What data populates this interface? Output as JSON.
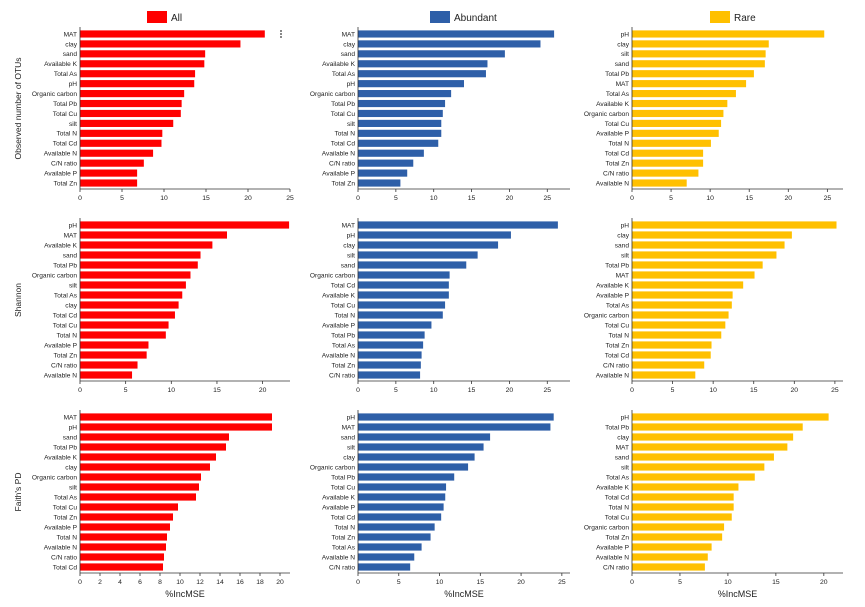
{
  "legend": [
    {
      "label": "All",
      "color": "#ff0000"
    },
    {
      "label": "Abundant",
      "color": "#2e5fa8"
    },
    {
      "label": "Rare",
      "color": "#ffc000"
    }
  ],
  "row_labels": [
    "Observed number of OTUs",
    "Shannon",
    "Faith's PD"
  ],
  "x_axis_label": "%IncMSE",
  "chart_data": [
    {
      "type": "bar",
      "orientation": "horizontal",
      "row": "Observed number of OTUs",
      "group": "All",
      "color": "#ff0000",
      "categories": [
        "MAT",
        "clay",
        "sand",
        "Available  K",
        "Total As",
        "pH",
        "Organic carbon",
        "Total Pb",
        "Total Cu",
        "silt",
        "Total N",
        "Total Cd",
        "Available N",
        "C/N ratio",
        "Available  P",
        "Total Zn"
      ],
      "values": [
        22.0,
        19.1,
        14.9,
        14.8,
        13.7,
        13.6,
        12.4,
        12.1,
        12.0,
        11.1,
        9.8,
        9.7,
        8.7,
        7.6,
        6.8,
        6.8
      ],
      "xlim": [
        0,
        25
      ],
      "ticks": [
        0,
        5,
        10,
        15,
        20,
        25
      ],
      "xlabel": ""
    },
    {
      "type": "bar",
      "orientation": "horizontal",
      "row": "Observed number of OTUs",
      "group": "Abundant",
      "color": "#2e5fa8",
      "categories": [
        "MAT",
        "clay",
        "sand",
        "Available  K",
        "Total As",
        "pH",
        "Organic carbon",
        "Total Pb",
        "Total Cu",
        "silt",
        "Total N",
        "Total Cd",
        "Available N",
        "C/N ratio",
        "Available  P",
        "Total Zn"
      ],
      "values": [
        25.9,
        24.1,
        19.4,
        17.1,
        16.9,
        14.0,
        12.3,
        11.5,
        11.2,
        11.0,
        11.0,
        10.6,
        8.7,
        7.3,
        6.5,
        5.6
      ],
      "xlim": [
        0,
        28
      ],
      "ticks": [
        0,
        5,
        10,
        15,
        20,
        25
      ],
      "xlabel": ""
    },
    {
      "type": "bar",
      "orientation": "horizontal",
      "row": "Observed number of OTUs",
      "group": "Rare",
      "color": "#ffc000",
      "categories": [
        "pH",
        "clay",
        "silt",
        "sand",
        "Total Pb",
        "MAT",
        "Total As",
        "Available  K",
        "Organic carbon",
        "Total Cu",
        "Available  P",
        "Total N",
        "Total Cd",
        "Total Zn",
        "C/N ratio",
        "Available N"
      ],
      "values": [
        24.6,
        17.5,
        17.1,
        17.0,
        15.6,
        14.6,
        13.3,
        12.2,
        11.7,
        11.4,
        11.1,
        10.1,
        9.1,
        9.1,
        8.5,
        7.0
      ],
      "xlim": [
        0,
        27
      ],
      "ticks": [
        0,
        5,
        10,
        15,
        20,
        25
      ],
      "xlabel": ""
    },
    {
      "type": "bar",
      "orientation": "horizontal",
      "row": "Shannon",
      "group": "All",
      "color": "#ff0000",
      "categories": [
        "pH",
        "MAT",
        "Available  K",
        "sand",
        "Total Pb",
        "Organic carbon",
        "silt",
        "Total As",
        "clay",
        "Total Cd",
        "Total Cu",
        "Total N",
        "Available  P",
        "Total Zn",
        "C/N ratio",
        "Available N"
      ],
      "values": [
        22.9,
        16.1,
        14.5,
        13.2,
        12.9,
        12.1,
        11.6,
        11.2,
        10.8,
        10.4,
        9.7,
        9.4,
        7.5,
        7.3,
        6.3,
        5.7
      ],
      "xlim": [
        0,
        23
      ],
      "ticks": [
        0,
        5,
        10,
        15,
        20
      ],
      "xlabel": ""
    },
    {
      "type": "bar",
      "orientation": "horizontal",
      "row": "Shannon",
      "group": "Abundant",
      "color": "#2e5fa8",
      "categories": [
        "MAT",
        "pH",
        "clay",
        "silt",
        "sand",
        "Organic carbon",
        "Total Cd",
        "Available  K",
        "Total Cu",
        "Total N",
        "Available  P",
        "Total Pb",
        "Total As",
        "Available N",
        "Total Zn",
        "C/N ratio"
      ],
      "values": [
        26.4,
        20.2,
        18.5,
        15.8,
        14.3,
        12.1,
        12.0,
        12.0,
        11.5,
        11.2,
        9.7,
        8.8,
        8.6,
        8.4,
        8.3,
        8.2
      ],
      "xlim": [
        0,
        28
      ],
      "ticks": [
        0,
        5,
        10,
        15,
        20,
        25
      ],
      "xlabel": ""
    },
    {
      "type": "bar",
      "orientation": "horizontal",
      "row": "Shannon",
      "group": "Rare",
      "color": "#ffc000",
      "categories": [
        "pH",
        "clay",
        "sand",
        "silt",
        "Total Pb",
        "MAT",
        "Available  K",
        "Available  P",
        "Total As",
        "Organic carbon",
        "Total Cu",
        "Total N",
        "Total Zn",
        "Total Cd",
        "C/N ratio",
        "Available N"
      ],
      "values": [
        25.2,
        19.7,
        18.8,
        17.8,
        16.1,
        15.1,
        13.7,
        12.4,
        12.3,
        11.9,
        11.5,
        11.0,
        9.8,
        9.7,
        8.9,
        7.8
      ],
      "xlim": [
        0,
        26
      ],
      "ticks": [
        0,
        5,
        10,
        15,
        20,
        25
      ],
      "xlabel": ""
    },
    {
      "type": "bar",
      "orientation": "horizontal",
      "row": "Faith's PD",
      "group": "All",
      "color": "#ff0000",
      "categories": [
        "MAT",
        "pH",
        "sand",
        "Total Pb",
        "Available  K",
        "clay",
        "Organic carbon",
        "silt",
        "Total As",
        "Total Cu",
        "Total Zn",
        "Available  P",
        "Total N",
        "Available N",
        "C/N ratio",
        "Total Cd"
      ],
      "values": [
        19.2,
        19.2,
        14.9,
        14.6,
        13.6,
        13.0,
        12.1,
        11.9,
        11.6,
        9.8,
        9.3,
        9.0,
        8.7,
        8.6,
        8.4,
        8.3
      ],
      "xlim": [
        0,
        21
      ],
      "ticks": [
        0,
        2,
        4,
        6,
        8,
        10,
        12,
        14,
        16,
        18,
        20
      ],
      "xlabel": "%IncMSE"
    },
    {
      "type": "bar",
      "orientation": "horizontal",
      "row": "Faith's PD",
      "group": "Abundant",
      "color": "#2e5fa8",
      "categories": [
        "pH",
        "MAT",
        "sand",
        "silt",
        "clay",
        "Organic carbon",
        "Total Pb",
        "Total Cu",
        "Available  K",
        "Available  P",
        "Total Cd",
        "Total N",
        "Total Zn",
        "Total As",
        "Available N",
        "C/N ratio"
      ],
      "values": [
        24.0,
        23.6,
        16.2,
        15.4,
        14.3,
        13.5,
        11.8,
        10.8,
        10.7,
        10.5,
        10.2,
        9.4,
        8.9,
        7.8,
        6.9,
        6.4
      ],
      "xlim": [
        0,
        26
      ],
      "ticks": [
        0,
        5,
        10,
        15,
        20,
        25
      ],
      "xlabel": "%IncMSE"
    },
    {
      "type": "bar",
      "orientation": "horizontal",
      "row": "Faith's PD",
      "group": "Rare",
      "color": "#ffc000",
      "categories": [
        "pH",
        "Total Pb",
        "clay",
        "MAT",
        "sand",
        "silt",
        "Total As",
        "Available  K",
        "Total Cd",
        "Total N",
        "Total Cu",
        "Organic carbon",
        "Total Zn",
        "Available  P",
        "Available N",
        "C/N ratio"
      ],
      "values": [
        20.5,
        17.8,
        16.8,
        16.2,
        14.8,
        13.8,
        12.8,
        11.1,
        10.6,
        10.6,
        10.4,
        9.6,
        9.4,
        8.3,
        7.9,
        7.6
      ],
      "xlim": [
        0,
        22
      ],
      "ticks": [
        0,
        5,
        10,
        15,
        20
      ],
      "xlabel": "%IncMSE"
    }
  ]
}
